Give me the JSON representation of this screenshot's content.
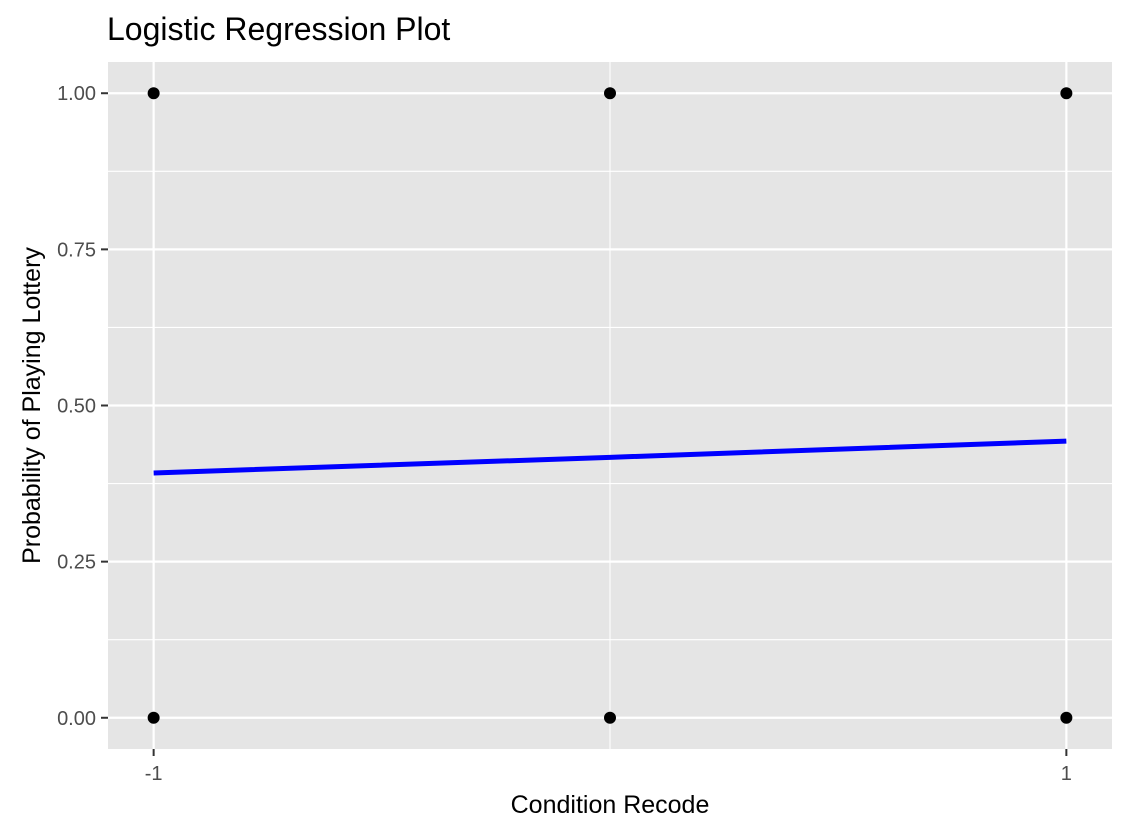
{
  "chart_data": {
    "type": "scatter",
    "title": "Logistic Regression Plot",
    "xlabel": "Condition Recode",
    "ylabel": "Probability of Playing Lottery",
    "xlim": [
      -1.1,
      1.1
    ],
    "ylim": [
      -0.05,
      1.05
    ],
    "x_ticks": [
      {
        "value": -1,
        "label": "-1"
      },
      {
        "value": 1,
        "label": "1"
      }
    ],
    "x_minor_gridlines": [
      0
    ],
    "y_ticks": [
      {
        "value": 0,
        "label": "0.00"
      },
      {
        "value": 0.25,
        "label": "0.25"
      },
      {
        "value": 0.5,
        "label": "0.50"
      },
      {
        "value": 0.75,
        "label": "0.75"
      },
      {
        "value": 1,
        "label": "1.00"
      }
    ],
    "grid": true,
    "legend": "none",
    "colors": {
      "panel_background": "#e5e5e5",
      "gridline": "#ffffff",
      "points": "#000000",
      "fit_line": "#0000ff",
      "tick_text": "#4d4d4d",
      "tick_mark": "#333333"
    },
    "points": [
      {
        "x": -1,
        "y": 1
      },
      {
        "x": 0,
        "y": 1
      },
      {
        "x": 1,
        "y": 1
      },
      {
        "x": -1,
        "y": 0
      },
      {
        "x": 0,
        "y": 0
      },
      {
        "x": 1,
        "y": 0
      }
    ],
    "fit_line": {
      "x": [
        -1,
        0,
        1
      ],
      "y": [
        0.392,
        0.417,
        0.443
      ]
    }
  }
}
